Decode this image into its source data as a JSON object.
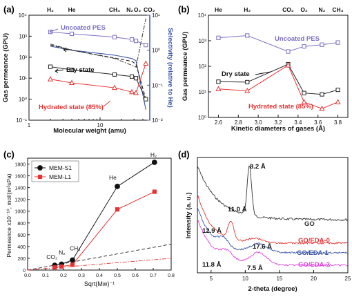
{
  "colors": {
    "purple": "#7a6fc4",
    "black": "#222222",
    "red": "#e63232",
    "blue": "#3a55a8",
    "gray": "#444444",
    "green": "#1a8a1a",
    "magenta": "#e040e0",
    "pink": "#ec4a8c"
  },
  "chart_data": [
    {
      "panel_label": "(a)",
      "type": "line",
      "x_scale": "log",
      "y_scale": "log",
      "y2_scale": "log",
      "xlabel": "Molecular weight (amu)",
      "ylabel": "Gas permeance (GPU)",
      "y2label": "Selectivity (relative to He)",
      "xlim": [
        1,
        50
      ],
      "ylim": [
        0.1,
        10000
      ],
      "y2lim": [
        0.01,
        10
      ],
      "top_labels": [
        {
          "text": "H₂",
          "x": 2
        },
        {
          "text": "He",
          "x": 4
        },
        {
          "text": "CH₄",
          "x": 16
        },
        {
          "text": "N₂",
          "x": 28
        },
        {
          "text": "O₂",
          "x": 32
        },
        {
          "text": "CO₂",
          "x": 44
        }
      ],
      "xticks": [
        {
          "v": 1,
          "label": "1"
        },
        {
          "v": 10,
          "label": "10"
        }
      ],
      "yticks": [
        {
          "v": 0.1,
          "label": "10⁻¹"
        },
        {
          "v": 1,
          "label": "10⁰"
        },
        {
          "v": 10,
          "label": "10¹"
        },
        {
          "v": 100,
          "label": "10²"
        },
        {
          "v": 1000,
          "label": "10³"
        },
        {
          "v": 10000,
          "label": "10⁴"
        }
      ],
      "y2ticks": [
        {
          "v": 0.01,
          "label": "10⁻²"
        },
        {
          "v": 0.1,
          "label": "10⁻¹"
        },
        {
          "v": 1,
          "label": "10⁰"
        },
        {
          "v": 10,
          "label": "10¹"
        }
      ],
      "series": [
        {
          "name": "Uncoated PES",
          "color": "#7a6fc4",
          "marker": "square",
          "x": [
            2,
            4,
            16,
            28,
            32,
            44
          ],
          "values": [
            1600,
            1300,
            900,
            700,
            600,
            380
          ]
        },
        {
          "name": "Dry state",
          "color": "#222222",
          "marker": "square",
          "x": [
            2,
            4,
            16,
            28,
            32,
            44
          ],
          "values": [
            35,
            25,
            15,
            12,
            10,
            1.0
          ]
        },
        {
          "name": "Hydrated state (85%)",
          "color": "#e63232",
          "marker": "triangle",
          "x": [
            2,
            4,
            16,
            28,
            32,
            44
          ],
          "values": [
            9,
            6,
            3.5,
            2.2,
            2.0,
            50
          ]
        }
      ],
      "selectivity_series": [
        {
          "color": "#3a55a8",
          "style": "solid",
          "x": [
            2,
            4,
            16,
            28,
            32,
            44
          ],
          "values": [
            1.3,
            1,
            0.72,
            0.58,
            0.5,
            0.02
          ]
        },
        {
          "color": "#222222",
          "style": "dash",
          "x": [
            2,
            4,
            16,
            28,
            32,
            44
          ],
          "values": [
            1.4,
            1,
            0.6,
            0.48,
            0.4,
            0.04
          ]
        },
        {
          "color": "#444444",
          "style": "dashdot",
          "x": [
            2,
            4,
            16,
            28,
            32,
            44
          ],
          "values": [
            1.5,
            1,
            0.58,
            0.37,
            0.33,
            8
          ]
        }
      ],
      "annotations": [
        {
          "text": "Uncoated PES",
          "color": "#7a6fc4"
        },
        {
          "text": "Dry state",
          "color": "#111111"
        },
        {
          "text": "Hydrated state (85%)",
          "color": "#e63232"
        }
      ]
    },
    {
      "panel_label": "(b)",
      "type": "line",
      "y_scale": "log",
      "xlabel": "Kinetic diameters of gases (Å)",
      "ylabel": "Gas permeance (GPU)",
      "xlim": [
        2.5,
        3.9
      ],
      "ylim": [
        1,
        10000
      ],
      "top_labels": [
        {
          "text": "He",
          "x": 2.6
        },
        {
          "text": "H₂",
          "x": 2.89
        },
        {
          "text": "CO₂",
          "x": 3.3
        },
        {
          "text": "O₂",
          "x": 3.46
        },
        {
          "text": "N₂",
          "x": 3.64
        },
        {
          "text": "CH₄",
          "x": 3.8
        }
      ],
      "xticks": [
        {
          "v": 2.6,
          "label": "2.6"
        },
        {
          "v": 2.8,
          "label": "2.8"
        },
        {
          "v": 3.0,
          "label": "3.0"
        },
        {
          "v": 3.2,
          "label": "3.2"
        },
        {
          "v": 3.4,
          "label": "3.4"
        },
        {
          "v": 3.6,
          "label": "3.6"
        },
        {
          "v": 3.8,
          "label": "3.8"
        }
      ],
      "yticks": [
        {
          "v": 1,
          "label": "10⁰"
        },
        {
          "v": 10,
          "label": "10¹"
        },
        {
          "v": 100,
          "label": "10²"
        },
        {
          "v": 1000,
          "label": "10³"
        },
        {
          "v": 10000,
          "label": "10⁴"
        }
      ],
      "series": [
        {
          "name": "Uncoated PES",
          "color": "#7a6fc4",
          "marker": "square",
          "x": [
            2.6,
            2.89,
            3.3,
            3.46,
            3.64,
            3.8
          ],
          "values": [
            1300,
            1600,
            380,
            600,
            700,
            850
          ]
        },
        {
          "name": "Dry state",
          "color": "#222222",
          "marker": "square",
          "x": [
            2.6,
            2.89,
            3.3,
            3.46,
            3.64,
            3.8
          ],
          "values": [
            25,
            24,
            120,
            9,
            8,
            12
          ]
        },
        {
          "name": "Hydrated state (85%)",
          "color": "#e63232",
          "marker": "triangle",
          "x": [
            2.6,
            2.89,
            3.3,
            3.46,
            3.64,
            3.8
          ],
          "values": [
            13,
            11,
            110,
            4,
            2.2,
            4
          ]
        }
      ],
      "annotations": [
        {
          "text": "Uncoated PES",
          "color": "#7a6fc4"
        },
        {
          "text": "Dry state",
          "color": "#111111"
        },
        {
          "text": "Hydrated state (85%)",
          "color": "#e63232"
        }
      ]
    },
    {
      "panel_label": "(c)",
      "type": "line",
      "xlabel": "Sqrt(Mw)⁻¹",
      "ylabel": "Permeance x10⁻¹⁰, mol/(m²sPa)",
      "xlim": [
        0,
        0.8
      ],
      "ylim": [
        0,
        1900
      ],
      "xticks": [
        {
          "v": 0.0,
          "label": "0.0"
        },
        {
          "v": 0.1,
          "label": "0.1"
        },
        {
          "v": 0.2,
          "label": "0.2"
        },
        {
          "v": 0.3,
          "label": "0.3"
        },
        {
          "v": 0.4,
          "label": "0.4"
        },
        {
          "v": 0.5,
          "label": "0.5"
        },
        {
          "v": 0.6,
          "label": "0.6"
        },
        {
          "v": 0.7,
          "label": "0.7"
        },
        {
          "v": 0.8,
          "label": "0.8"
        }
      ],
      "yticks": [
        {
          "v": 0,
          "label": "0"
        },
        {
          "v": 200,
          "label": "200"
        },
        {
          "v": 400,
          "label": "400"
        },
        {
          "v": 600,
          "label": "600"
        },
        {
          "v": 800,
          "label": "800"
        },
        {
          "v": 1000,
          "label": "1000"
        },
        {
          "v": 1200,
          "label": "1200"
        },
        {
          "v": 1400,
          "label": "1400"
        },
        {
          "v": 1600,
          "label": "1600"
        },
        {
          "v": 1800,
          "label": "1800"
        }
      ],
      "series": [
        {
          "name": "MEM-S1",
          "color": "#111111",
          "marker": "circle",
          "x": [
            0.151,
            0.189,
            0.25,
            0.5,
            0.707
          ],
          "values": [
            80,
            100,
            170,
            1420,
            1830
          ]
        },
        {
          "name": "MEM-L1",
          "color": "#e63232",
          "marker": "square",
          "x": [
            0.151,
            0.189,
            0.25,
            0.5,
            0.707
          ],
          "values": [
            45,
            60,
            90,
            1030,
            1330
          ]
        }
      ],
      "reference_lines": [
        {
          "color": "#222222",
          "style": "dash",
          "x": [
            0,
            0.8
          ],
          "values": [
            0,
            440
          ]
        },
        {
          "color": "#e63232",
          "style": "dashdot",
          "x": [
            0,
            0.8
          ],
          "values": [
            0,
            200
          ]
        }
      ],
      "gas_labels": [
        {
          "text": "CO₂"
        },
        {
          "text": "N₂"
        },
        {
          "text": "CH₄"
        },
        {
          "text": "He"
        },
        {
          "text": "H₂"
        }
      ],
      "legend_position": "top-left"
    },
    {
      "panel_label": "(d)",
      "type": "line",
      "xlabel": "2-theta (degree)",
      "ylabel": "Intensity (a. u.)",
      "xlim": [
        3,
        25
      ],
      "xticks": [
        {
          "v": 5,
          "label": "5"
        },
        {
          "v": 10,
          "label": "10"
        },
        {
          "v": 15,
          "label": "15"
        },
        {
          "v": 20,
          "label": "20"
        },
        {
          "v": 25,
          "label": "25"
        }
      ],
      "series": [
        {
          "name": "GO",
          "color": "#333333"
        },
        {
          "name": "GO/EDA-0",
          "color": "#e63232"
        },
        {
          "name": "GO/EDA-1",
          "color": "#3a55a8"
        },
        {
          "name": "GO/EDA-2",
          "color": "#e040e0"
        }
      ],
      "peak_labels": [
        {
          "text": "8.2 Å",
          "color": "#111111"
        },
        {
          "text": "11.0 Å",
          "color": "#111111"
        },
        {
          "text": "12.9 Å",
          "color": "#111111"
        },
        {
          "text": "17.6 Å",
          "color": "#111111"
        },
        {
          "text": "11.8 Å",
          "color": "#111111"
        },
        {
          "text": "7.5 Å",
          "color": "#111111"
        }
      ]
    }
  ]
}
